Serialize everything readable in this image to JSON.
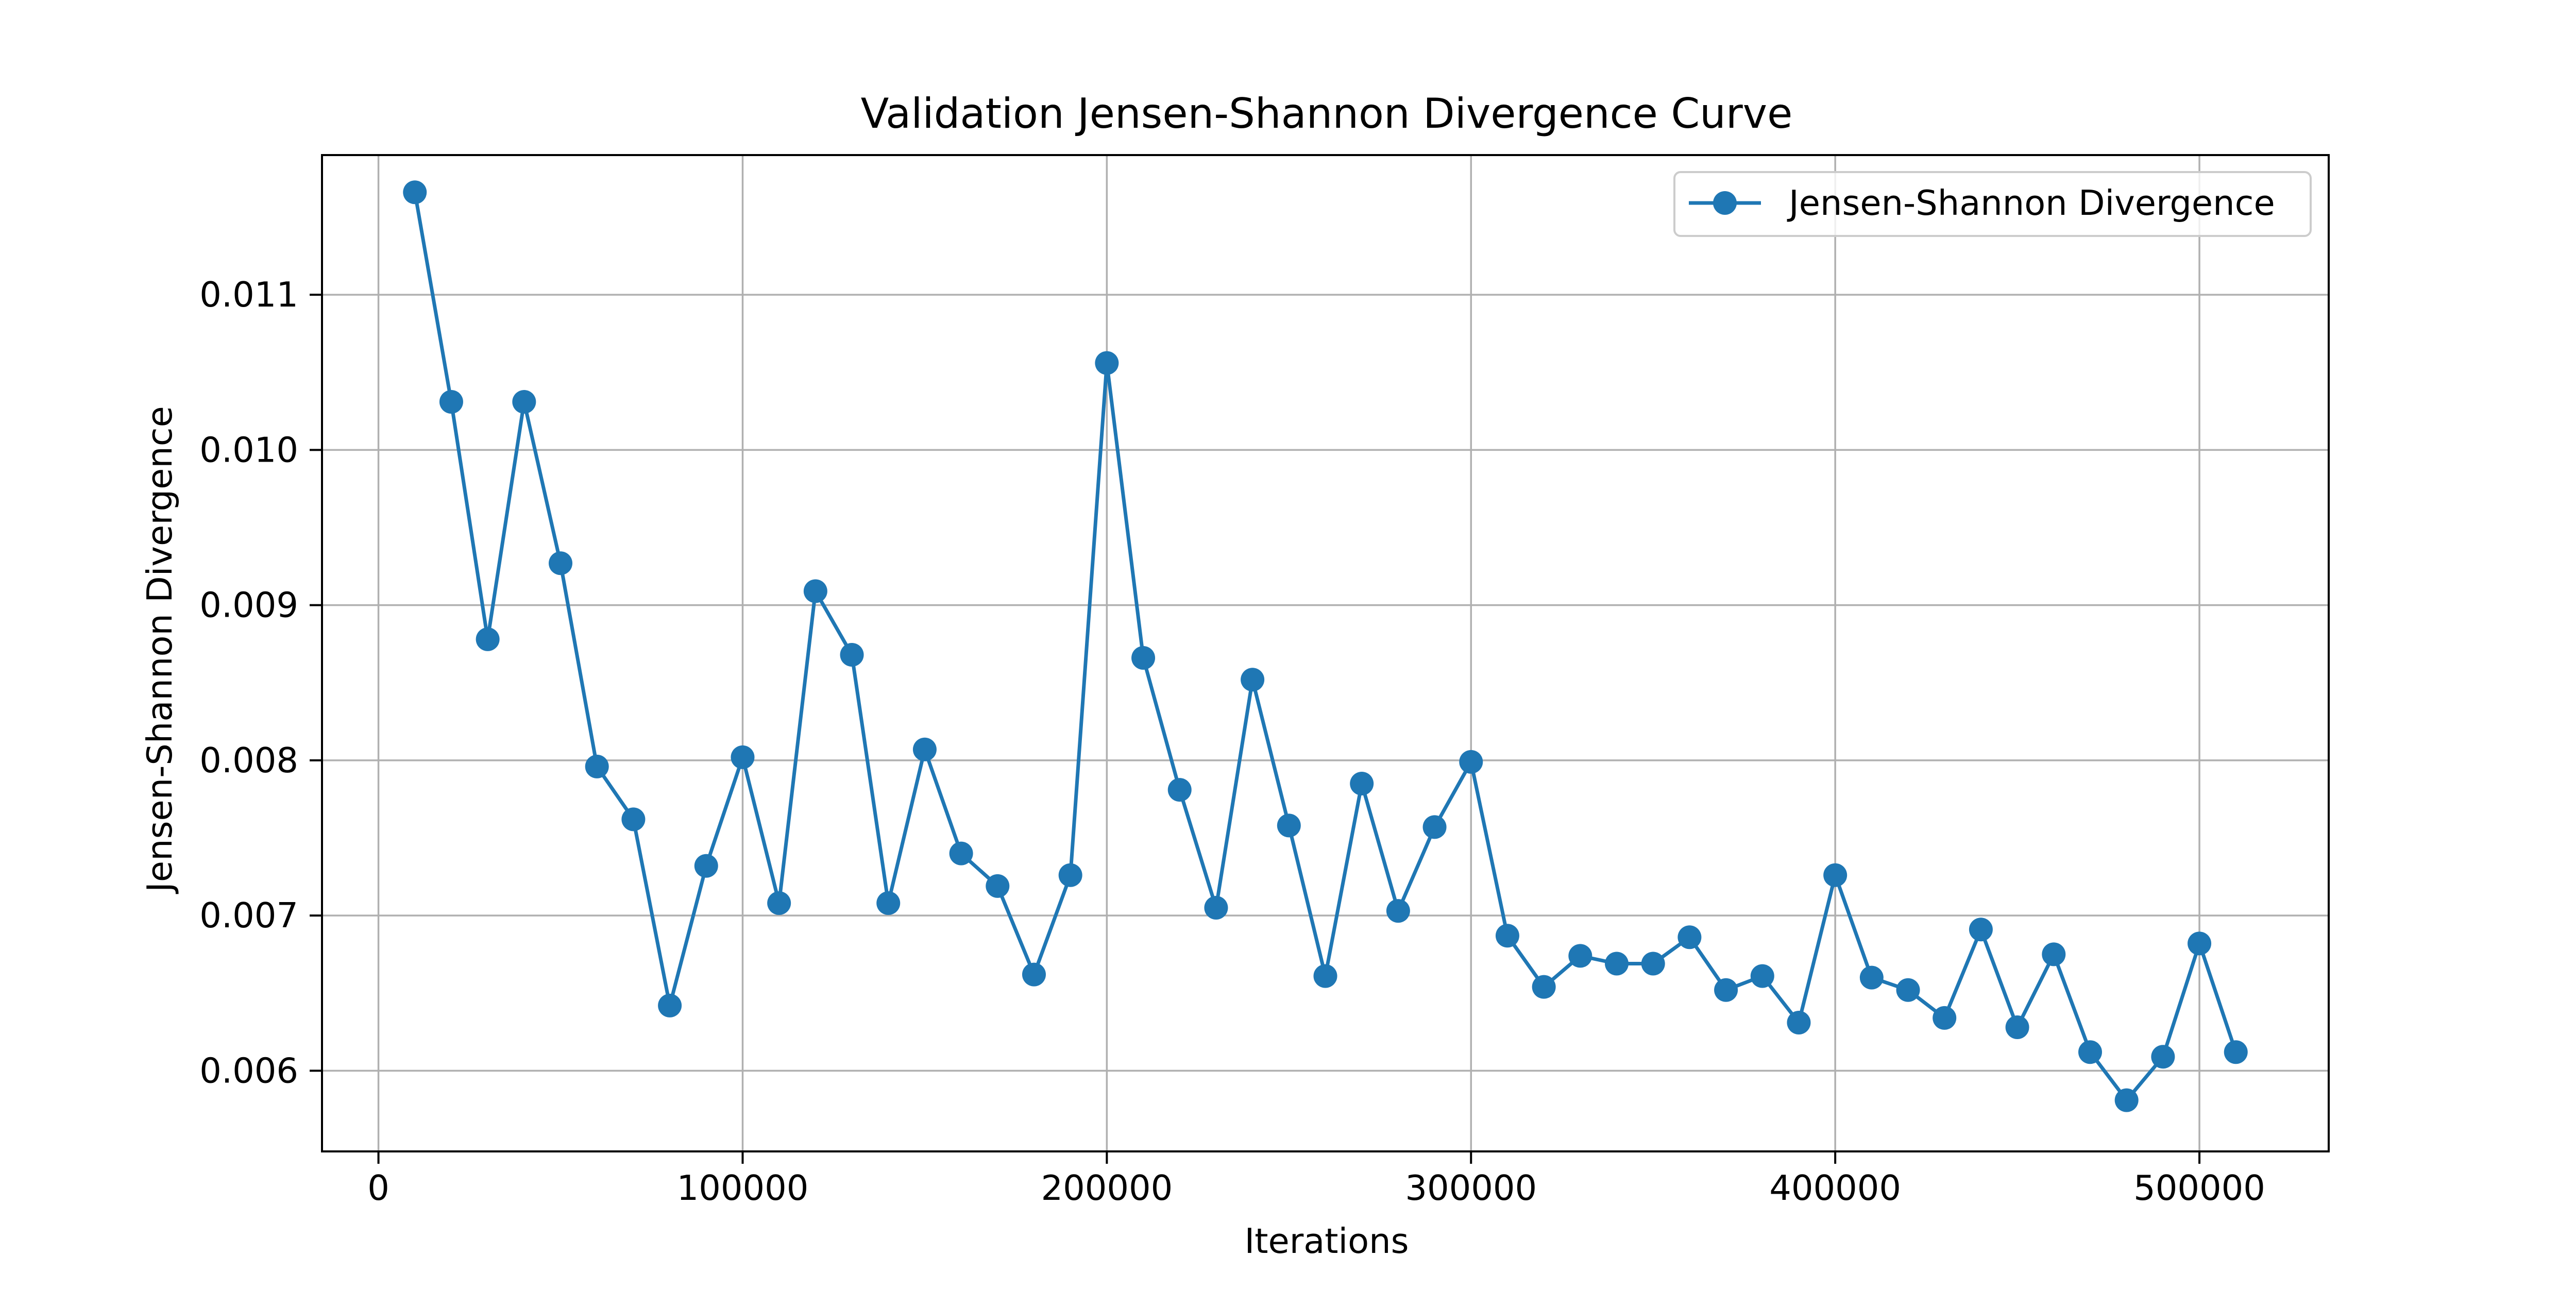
{
  "chart_data": {
    "type": "line",
    "title": "Validation Jensen-Shannon Divergence Curve",
    "xlabel": "Iterations",
    "ylabel": "Jensen-Shannon Divergence",
    "xlim": [
      -15500,
      535500
    ],
    "ylim": [
      0.00548,
      0.0119
    ],
    "xticks": [
      0,
      100000,
      200000,
      300000,
      400000,
      500000
    ],
    "xtick_labels": [
      "0",
      "100000",
      "200000",
      "300000",
      "400000",
      "500000"
    ],
    "yticks": [
      0.006,
      0.007,
      0.008,
      0.009,
      0.01,
      0.011
    ],
    "ytick_labels": [
      "0.006",
      "0.007",
      "0.008",
      "0.009",
      "0.010",
      "0.011"
    ],
    "grid": true,
    "legend_position": "top-right",
    "series": [
      {
        "name": "Jensen-Shannon Divergence",
        "color": "#1f77b4",
        "marker": "circle",
        "x": [
          10000,
          20000,
          30000,
          40000,
          50000,
          60000,
          70000,
          80000,
          90000,
          100000,
          110000,
          120000,
          130000,
          140000,
          150000,
          160000,
          170000,
          180000,
          190000,
          200000,
          210000,
          220000,
          230000,
          240000,
          250000,
          260000,
          270000,
          280000,
          290000,
          300000,
          310000,
          320000,
          330000,
          340000,
          350000,
          360000,
          370000,
          380000,
          390000,
          400000,
          410000,
          420000,
          430000,
          440000,
          450000,
          460000,
          470000,
          480000,
          490000,
          500000,
          510000
        ],
        "y": [
          0.01166,
          0.01031,
          0.00878,
          0.01031,
          0.00927,
          0.00796,
          0.00762,
          0.00642,
          0.00732,
          0.00802,
          0.00708,
          0.00909,
          0.00868,
          0.00708,
          0.00807,
          0.0074,
          0.00719,
          0.00662,
          0.00726,
          0.01056,
          0.00866,
          0.00781,
          0.00705,
          0.00852,
          0.00758,
          0.00661,
          0.00785,
          0.00703,
          0.00757,
          0.00799,
          0.00687,
          0.00654,
          0.00674,
          0.00669,
          0.00669,
          0.00686,
          0.00652,
          0.00661,
          0.00631,
          0.00726,
          0.0066,
          0.00652,
          0.00634,
          0.00691,
          0.00628,
          0.00675,
          0.00612,
          0.00581,
          0.00609,
          0.00682,
          0.00612
        ]
      }
    ]
  }
}
